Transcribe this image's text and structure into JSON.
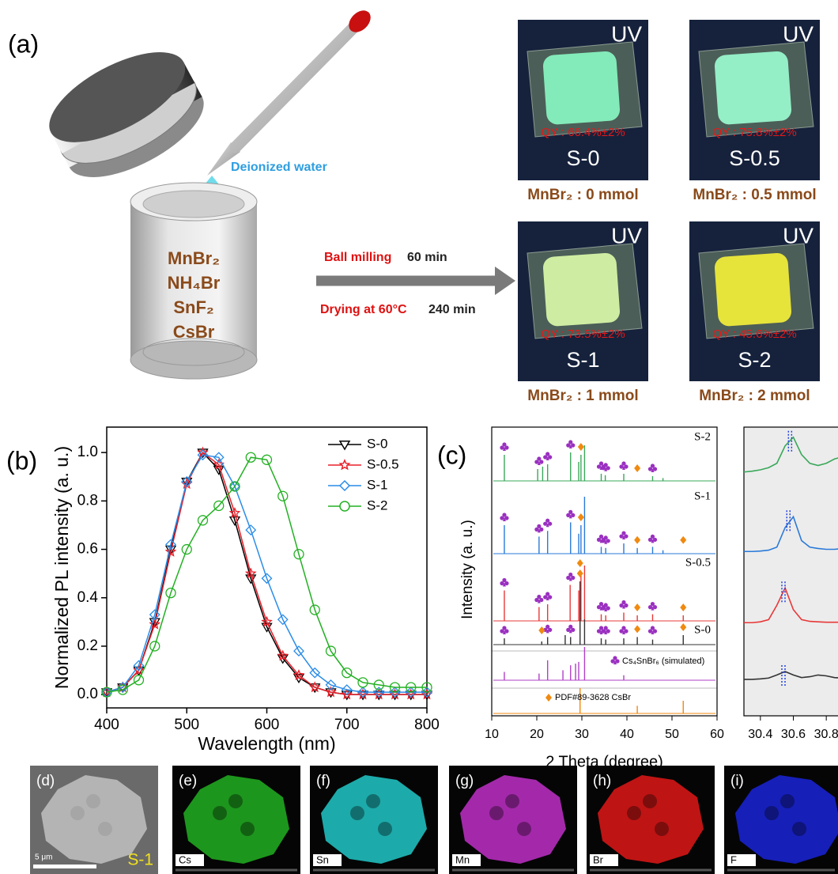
{
  "panel_a": {
    "label": "(a)",
    "reagent_label": "Deionized water",
    "precursors": [
      "MnBr₂",
      "NH₄Br",
      "SnF₂",
      "CsBr"
    ],
    "step_1": {
      "name": "Ball milling",
      "time": "60 min"
    },
    "step_2": {
      "name": "Drying at 60°C",
      "time": "240 min"
    },
    "samples": [
      {
        "lamp": "UV",
        "qy": "QY : 66.4%±2%",
        "name": "S-0",
        "caption": "MnBr₂ : 0 mmol",
        "color": "#86f2bf"
      },
      {
        "lamp": "UV",
        "qy": "QY : 75.8%±2%",
        "name": "S-0.5",
        "caption": "MnBr₂ : 0.5 mmol",
        "color": "#98f6cc"
      },
      {
        "lamp": "UV",
        "qy": "QY : 73.5%±2%",
        "name": "S-1",
        "caption": "MnBr₂ : 1 mmol",
        "color": "#d6f4a6"
      },
      {
        "lamp": "UV",
        "qy": "QY : 45.6%±2%",
        "name": "S-2",
        "caption": "MnBr₂ : 2 mmol",
        "color": "#eeea3a"
      }
    ]
  },
  "chart_data": [
    {
      "type": "line",
      "label": "(b)",
      "x_label": "Wavelength (nm)",
      "y_label": "Normalized PL intensity (a. u.)",
      "x": [
        400,
        420,
        440,
        460,
        480,
        500,
        520,
        540,
        560,
        580,
        600,
        620,
        640,
        660,
        680,
        700,
        720,
        740,
        760,
        780,
        800
      ],
      "series": [
        {
          "name": "S-0",
          "color": "#000000",
          "marker": "triangle-down",
          "values": [
            0.01,
            0.03,
            0.1,
            0.3,
            0.6,
            0.88,
            1.0,
            0.93,
            0.72,
            0.48,
            0.28,
            0.15,
            0.07,
            0.03,
            0.01,
            0,
            0,
            0,
            0,
            0,
            0
          ]
        },
        {
          "name": "S-0.5",
          "color": "#e8202a",
          "marker": "star",
          "values": [
            0.01,
            0.03,
            0.1,
            0.29,
            0.59,
            0.87,
            1.0,
            0.95,
            0.75,
            0.5,
            0.3,
            0.16,
            0.08,
            0.03,
            0.01,
            0,
            0,
            0,
            0,
            0,
            0
          ]
        },
        {
          "name": "S-1",
          "color": "#2a8ce8",
          "marker": "diamond",
          "values": [
            0.01,
            0.03,
            0.12,
            0.33,
            0.62,
            0.88,
            0.99,
            0.98,
            0.86,
            0.68,
            0.48,
            0.31,
            0.18,
            0.09,
            0.04,
            0.02,
            0.01,
            0.01,
            0.01,
            0.01,
            0.01
          ]
        },
        {
          "name": "S-2",
          "color": "#22b022",
          "marker": "circle",
          "values": [
            0.01,
            0.02,
            0.06,
            0.2,
            0.42,
            0.6,
            0.72,
            0.78,
            0.86,
            0.98,
            0.97,
            0.82,
            0.58,
            0.35,
            0.18,
            0.09,
            0.05,
            0.04,
            0.03,
            0.03,
            0.03
          ]
        }
      ],
      "xlim": [
        400,
        800
      ],
      "ylim": [
        -0.055,
        1.105
      ],
      "xticks": [
        400,
        500,
        600,
        700,
        800
      ],
      "yticks": [
        {
          "value": 0,
          "label": "0.0"
        },
        0.2,
        0.4,
        0.6,
        0.8,
        {
          "value": 1,
          "label": "1.0"
        }
      ],
      "legend": "upper right"
    },
    {
      "type": "xrd",
      "label": "(c)",
      "x_label": "2 Theta (degree)",
      "y_label": "Intensity (a. u.)",
      "xlim": [
        10,
        60
      ],
      "xticks": [
        10,
        20,
        30,
        40,
        50,
        60
      ],
      "series": [
        {
          "name": "S-2",
          "color": "#3aa85a",
          "peaks_x": [
            12.8,
            20.2,
            21.3,
            22.4,
            27.5,
            29.3,
            29.8,
            30.6,
            34.3,
            35.2,
            39.3,
            45.7,
            48
          ],
          "peaks_y": [
            0.55,
            0.25,
            0.3,
            0.35,
            0.6,
            0.4,
            0.55,
            0.75,
            0.15,
            0.12,
            0.15,
            0.1,
            0.06
          ],
          "cs4snbr6_x": [
            12.8,
            20.5,
            22.4,
            27.5,
            34.3,
            35.3,
            39.3,
            45.7
          ],
          "csbr_x": [
            29.8,
            42.3
          ]
        },
        {
          "name": "S-1",
          "color": "#2a7ad8",
          "peaks_x": [
            12.8,
            20.5,
            22.4,
            27.5,
            29.3,
            29.8,
            30.6,
            34.3,
            35.3,
            39.3,
            42.3,
            45.7,
            48
          ],
          "peaks_y": [
            0.5,
            0.3,
            0.4,
            0.55,
            0.35,
            0.5,
            1.0,
            0.12,
            0.1,
            0.18,
            0.1,
            0.12,
            0.06
          ],
          "cs4snbr6_x": [
            12.8,
            20.5,
            22.4,
            27.5,
            34.3,
            35.3,
            39.3,
            45.7
          ],
          "csbr_x": [
            29.8,
            42.3,
            52.5
          ]
        },
        {
          "name": "S-0.5",
          "color": "#e83838",
          "peaks_x": [
            12.8,
            20.5,
            22.4,
            27.4,
            29.3,
            29.8,
            30.6,
            34.3,
            35.3,
            39.3,
            42.3,
            45.7,
            52.5
          ],
          "peaks_y": [
            0.55,
            0.25,
            0.3,
            0.65,
            0.55,
            0.9,
            1.0,
            0.12,
            0.1,
            0.15,
            0.1,
            0.12,
            0.1
          ],
          "cs4snbr6_x": [
            12.8,
            20.5,
            22.4,
            27.5,
            34.3,
            35.3,
            39.3,
            45.7
          ],
          "csbr_x": [
            29.6,
            42.3,
            52.5
          ]
        },
        {
          "name": "S-0",
          "color": "#333333",
          "peaks_x": [
            12.8,
            21.1,
            22.4,
            26.3,
            27.5,
            29.6,
            30.6,
            34.3,
            35.3,
            39.3,
            42.3,
            45.7,
            52.5
          ],
          "peaks_y": [
            0.1,
            0.05,
            0.12,
            0.15,
            0.12,
            1.0,
            0.4,
            0.1,
            0.08,
            0.1,
            0.12,
            0.08,
            0.15
          ],
          "cs4snbr6_x": [
            12.8,
            22.4,
            27.5,
            34.3,
            35.3,
            39.3,
            45.7
          ],
          "csbr_x": [
            21.1,
            29.6,
            42.3,
            52.5
          ]
        },
        {
          "name": "Cs₄SnBr₆ (simulated)",
          "color": "#b040c8",
          "peaks_x": [
            12.8,
            20.5,
            22.4,
            25.8,
            27.5,
            28.6,
            29.3,
            30.6,
            39.3
          ],
          "peaks_y": [
            0.25,
            0.2,
            0.6,
            0.3,
            0.45,
            0.5,
            0.55,
            1.0,
            0.15
          ]
        },
        {
          "name": "PDF#89-3628  CsBr",
          "color": "#f08a10",
          "peaks_x": [
            29.6,
            42.3,
            52.5
          ],
          "peaks_y": [
            1.0,
            0.3,
            0.5
          ]
        }
      ]
    },
    {
      "type": "stackedline",
      "xlim": [
        30.3,
        30.9
      ],
      "xticks": [
        30.4,
        30.6,
        30.8
      ],
      "x": [
        30.3,
        30.35,
        30.4,
        30.45,
        30.5,
        30.55,
        30.6,
        30.65,
        30.7,
        30.75,
        30.8,
        30.85,
        30.9
      ],
      "series": [
        {
          "color": "#3aa85a",
          "peak_x": 30.58,
          "values": [
            0.15,
            0.17,
            0.2,
            0.25,
            0.35,
            0.75,
            0.95,
            0.55,
            0.35,
            0.3,
            0.35,
            0.45,
            0.5
          ]
        },
        {
          "color": "#2a7ad8",
          "peak_x": 30.57,
          "values": [
            0.05,
            0.05,
            0.06,
            0.08,
            0.15,
            0.6,
            0.85,
            0.3,
            0.15,
            0.12,
            0.1,
            0.1,
            0.12
          ]
        },
        {
          "color": "#e83838",
          "peak_x": 30.54,
          "values": [
            0.05,
            0.05,
            0.07,
            0.12,
            0.45,
            0.85,
            0.35,
            0.12,
            0.08,
            0.07,
            0.06,
            0.06,
            0.06
          ]
        },
        {
          "color": "#333333",
          "peak_x": 30.54,
          "values": [
            0.02,
            0.02,
            0.03,
            0.05,
            0.12,
            0.2,
            0.12,
            0.06,
            0.08,
            0.12,
            0.1,
            0.06,
            0.05
          ]
        }
      ]
    }
  ],
  "panels_bottom": [
    {
      "label": "(d)",
      "scale_bar": "5 μm",
      "sample": "S-1"
    },
    {
      "label": "(e)",
      "element": "Cs",
      "color": "#22b022"
    },
    {
      "label": "(f)",
      "element": "Sn",
      "color": "#22c8c8"
    },
    {
      "label": "(g)",
      "element": "Mn",
      "color": "#c030c8"
    },
    {
      "label": "(h)",
      "element": "Br",
      "color": "#e01818"
    },
    {
      "label": "(i)",
      "element": "F",
      "color": "#1a24d8"
    }
  ]
}
